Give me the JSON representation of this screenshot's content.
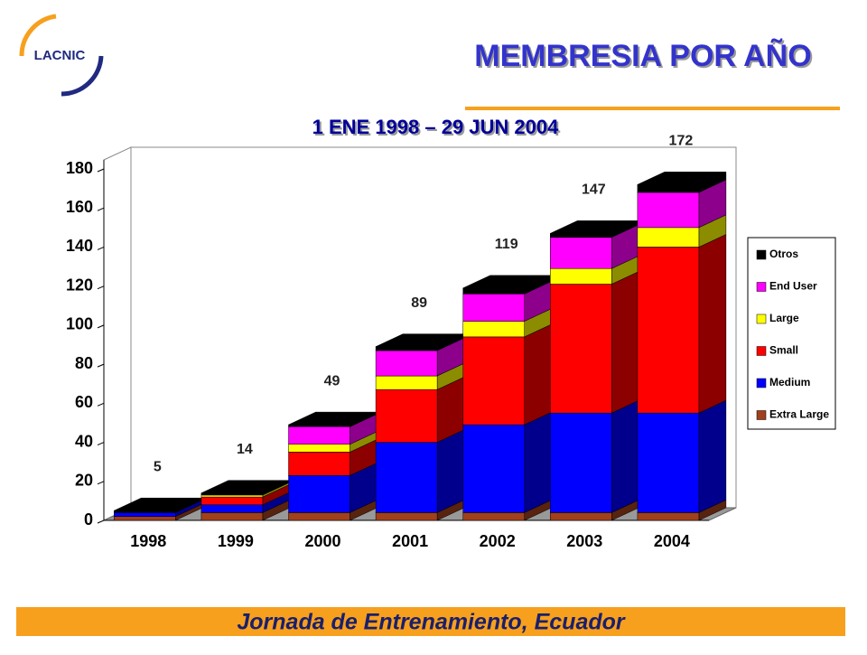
{
  "logo": "LACNIC",
  "title": "MEMBRESIA POR AÑO",
  "footer": "Jornada de Entrenamiento, Ecuador",
  "chart_data": {
    "type": "stacked_bar_3d",
    "title": "1 ENE 1998 – 29 JUN 2004",
    "categories": [
      "1998",
      "1999",
      "2000",
      "2001",
      "2002",
      "2003",
      "2004"
    ],
    "series": [
      {
        "name": "Extra Large",
        "color": "#a0401c",
        "values": [
          2,
          4,
          4,
          4,
          4,
          4,
          4
        ]
      },
      {
        "name": "Medium",
        "color": "#0000ff",
        "values": [
          2,
          4,
          19,
          36,
          45,
          51,
          51
        ]
      },
      {
        "name": "Small",
        "color": "#ff0000",
        "values": [
          0,
          4,
          12,
          27,
          45,
          66,
          85
        ]
      },
      {
        "name": "Large",
        "color": "#ffff00",
        "values": [
          0,
          1,
          4,
          7,
          8,
          8,
          10
        ]
      },
      {
        "name": "End User",
        "color": "#ff00ff",
        "values": [
          0,
          0,
          9,
          13,
          14,
          16,
          18
        ]
      },
      {
        "name": "Otros",
        "color": "#000000",
        "values": [
          1,
          1,
          1,
          2,
          3,
          2,
          4
        ]
      }
    ],
    "totals": [
      5,
      14,
      49,
      89,
      119,
      147,
      172
    ],
    "ylim": [
      0,
      180
    ],
    "yticks": [
      0,
      20,
      40,
      60,
      80,
      100,
      120,
      140,
      160,
      180
    ],
    "legend": "right"
  }
}
